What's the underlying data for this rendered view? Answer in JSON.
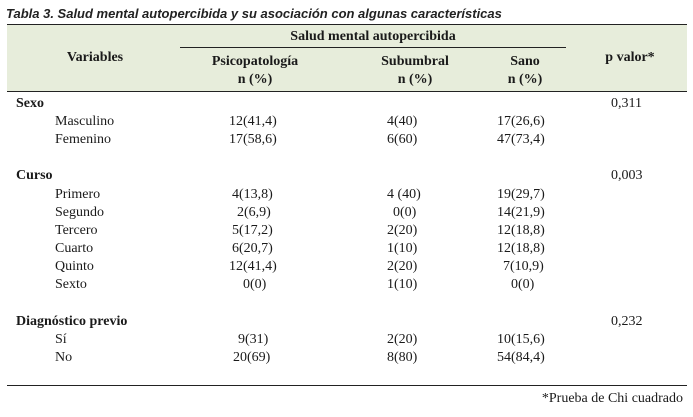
{
  "caption": "Tabla 3. Salud mental autopercibida y su asociación con algunas características",
  "header": {
    "variables": "Variables",
    "group": "Salud mental autopercibida",
    "col1_line1": "Psicopatología",
    "col1_line2": "n (%)",
    "col2_line1": "Subumbral",
    "col2_line2": "n (%)",
    "col3_line1": "Sano",
    "col3_line2": "n (%)",
    "pvalue": "p valor*"
  },
  "sections": [
    {
      "label": "Sexo",
      "p": "0,311",
      "rows": [
        {
          "label": "Masculino",
          "c1": "12(41,4)",
          "c2": "4(40)",
          "c3": "17(26,6)"
        },
        {
          "label": "Femenino",
          "c1": "17(58,6)",
          "c2": "6(60)",
          "c3": "47(73,4)"
        }
      ]
    },
    {
      "label": "Curso",
      "p": "0,003",
      "rows": [
        {
          "label": "Primero",
          "c1": "4(13,8)",
          "c2": "4 (40)",
          "c3": "19(29,7)"
        },
        {
          "label": "Segundo",
          "c1": "2(6,9)",
          "c2": "0(0)",
          "c3": "14(21,9)"
        },
        {
          "label": "Tercero",
          "c1": "5(17,2)",
          "c2": "2(20)",
          "c3": "12(18,8)"
        },
        {
          "label": "Cuarto",
          "c1": "6(20,7)",
          "c2": "1(10)",
          "c3": "12(18,8)"
        },
        {
          "label": "Quinto",
          "c1": "12(41,4)",
          "c2": "2(20)",
          "c3": "7(10,9)"
        },
        {
          "label": "Sexto",
          "c1": "0(0)",
          "c2": "1(10)",
          "c3": "0(0)"
        }
      ]
    },
    {
      "label": "Diagnóstico previo",
      "p": "0,232",
      "rows": [
        {
          "label": "Sí",
          "c1": "9(31)",
          "c2": "2(20)",
          "c3": "10(15,6)"
        },
        {
          "label": "No",
          "c1": "20(69)",
          "c2": "8(80)",
          "c3": "54(84,4)"
        }
      ]
    }
  ],
  "footnote": "*Prueba de Chi cuadrado"
}
